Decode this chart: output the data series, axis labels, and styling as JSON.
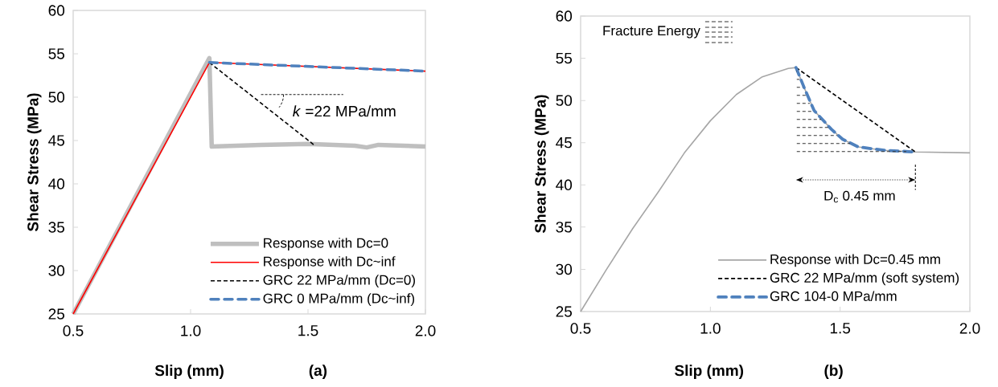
{
  "chart_data": [
    {
      "type": "line",
      "xlabel": "Slip (mm)",
      "ylabel": "Shear Stress (MPa)",
      "xlim": [
        0.5,
        2.0
      ],
      "ylim": [
        25,
        60
      ],
      "xticks": [
        {
          "value": 0.5,
          "label": "0.5"
        },
        {
          "value": 1.0,
          "label": "1.0"
        },
        {
          "value": 1.5,
          "label": "1.5"
        },
        {
          "value": 2.0,
          "label": "2.0"
        }
      ],
      "yticks": [
        25,
        30,
        35,
        40,
        45,
        50,
        55,
        60
      ],
      "legend": "bottom right",
      "annotations": [
        "*k* =22 MPa/mm",
        "(a)"
      ],
      "series": [
        {
          "name": "Response with Dc=0",
          "color": "#bfbfbf",
          "line_style": "solid",
          "x": [
            0.5,
            1.08,
            1.09,
            1.3,
            1.5,
            1.7,
            1.75,
            1.8,
            2.0
          ],
          "values": [
            25,
            54.5,
            44.3,
            44.5,
            44.6,
            44.4,
            44.2,
            44.5,
            44.3
          ]
        },
        {
          "name": "Response with Dc~inf",
          "color": "#ff0000",
          "line_style": "solid",
          "x": [
            0.5,
            1.08,
            2.0
          ],
          "values": [
            25,
            54,
            53
          ]
        },
        {
          "name": "GRC 22 MPa/mm (Dc=0)",
          "color": "#000000",
          "line_style": "dashed",
          "x": [
            1.08,
            1.53
          ],
          "values": [
            54,
            44.4
          ]
        },
        {
          "name": "GRC 0 MPa/mm (Dc~inf)",
          "color": "#4f81bd",
          "line_style": "dashed",
          "x": [
            1.08,
            2.0
          ],
          "values": [
            54,
            53
          ]
        }
      ]
    },
    {
      "type": "line",
      "xlabel": "Slip (mm)",
      "ylabel": "Shear Stress (MPa)",
      "xlim": [
        0.5,
        2.0
      ],
      "ylim": [
        25,
        60
      ],
      "xticks": [
        {
          "value": 0.5,
          "label": "0.5"
        },
        {
          "value": 1.0,
          "label": "1.0"
        },
        {
          "value": 1.5,
          "label": "1.5"
        },
        {
          "value": 2.0,
          "label": "2.0"
        }
      ],
      "yticks": [
        25,
        30,
        35,
        40,
        45,
        50,
        55,
        60
      ],
      "legend": "bottom right",
      "annotations": [
        "Fracture Energy",
        "D$_{c}$ 0.45 mm",
        "(b)"
      ],
      "series": [
        {
          "name": "Response with Dc=0.45 mm",
          "color": "#a6a6a6",
          "line_style": "solid",
          "x": [
            0.5,
            0.6,
            0.7,
            0.8,
            0.9,
            1.0,
            1.1,
            1.2,
            1.3,
            1.33,
            1.363,
            1.4,
            1.466,
            1.51,
            1.57,
            1.67,
            1.79,
            2.0
          ],
          "values": [
            25,
            30,
            34.8,
            39.2,
            43.8,
            47.6,
            50.7,
            52.8,
            53.8,
            53.9,
            51.4,
            48.8,
            46.6,
            45.4,
            44.5,
            44.1,
            43.9,
            43.8
          ]
        },
        {
          "name": "GRC 22 MPa/mm (soft system)",
          "color": "#000000",
          "line_style": "dashed",
          "x": [
            1.33,
            1.79
          ],
          "values": [
            53.9,
            43.9
          ]
        },
        {
          "name": "GRC 104-0 MPa/mm",
          "color": "#4f81bd",
          "line_style": "dashed",
          "x": [
            1.33,
            1.363,
            1.4,
            1.466,
            1.51,
            1.57,
            1.67,
            1.79
          ],
          "values": [
            53.9,
            51.4,
            48.8,
            46.6,
            45.4,
            44.5,
            44.1,
            43.9
          ]
        }
      ]
    }
  ]
}
